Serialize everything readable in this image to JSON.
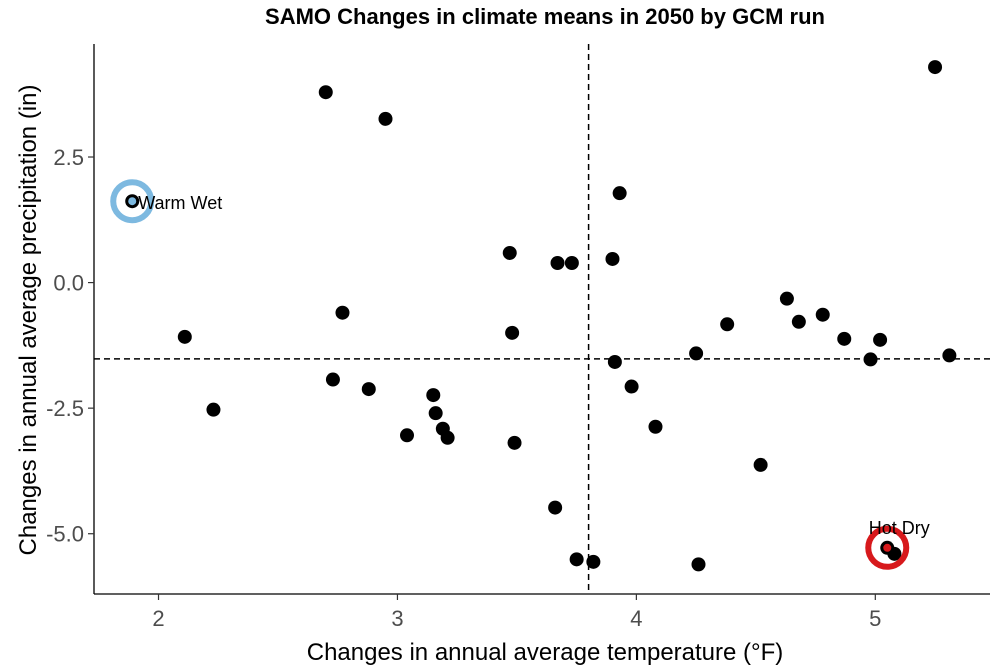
{
  "chart_data": {
    "type": "scatter",
    "title": "SAMO Changes in climate means in 2050 by GCM run",
    "xlabel": "Changes in annual average temperature (°F)",
    "ylabel": "Changes in annual average precipitation (in)",
    "xlim": [
      1.73,
      5.48
    ],
    "ylim": [
      -6.2,
      4.75
    ],
    "x_ticks": [
      2,
      3,
      4,
      5
    ],
    "x_tick_labels": [
      "2",
      "3",
      "4",
      "5"
    ],
    "y_ticks": [
      -5.0,
      -2.5,
      0.0,
      2.5
    ],
    "y_tick_labels": [
      "-5.0",
      "-2.5",
      "0.0",
      "2.5"
    ],
    "grid": false,
    "reference_lines": {
      "x": 3.8,
      "y": -1.52
    },
    "point_color": "#000000",
    "points": [
      {
        "x": 1.89,
        "y": 1.62
      },
      {
        "x": 2.11,
        "y": -1.08
      },
      {
        "x": 2.23,
        "y": -2.53
      },
      {
        "x": 2.7,
        "y": 3.79
      },
      {
        "x": 2.73,
        "y": -1.93
      },
      {
        "x": 2.77,
        "y": -0.6
      },
      {
        "x": 2.88,
        "y": -2.12
      },
      {
        "x": 2.95,
        "y": 3.26
      },
      {
        "x": 3.04,
        "y": -3.04
      },
      {
        "x": 3.15,
        "y": -2.24
      },
      {
        "x": 3.16,
        "y": -2.6
      },
      {
        "x": 3.19,
        "y": -2.91
      },
      {
        "x": 3.21,
        "y": -3.09
      },
      {
        "x": 3.47,
        "y": 0.59
      },
      {
        "x": 3.48,
        "y": -1.0
      },
      {
        "x": 3.49,
        "y": -3.19
      },
      {
        "x": 3.66,
        "y": -4.48
      },
      {
        "x": 3.67,
        "y": 0.39
      },
      {
        "x": 3.73,
        "y": 0.39
      },
      {
        "x": 3.75,
        "y": -5.51
      },
      {
        "x": 3.82,
        "y": -5.56
      },
      {
        "x": 3.9,
        "y": 0.47
      },
      {
        "x": 3.91,
        "y": -1.58
      },
      {
        "x": 3.93,
        "y": 1.78
      },
      {
        "x": 3.98,
        "y": -2.07
      },
      {
        "x": 4.08,
        "y": -2.87
      },
      {
        "x": 4.25,
        "y": -1.41
      },
      {
        "x": 4.26,
        "y": -5.61
      },
      {
        "x": 4.38,
        "y": -0.83
      },
      {
        "x": 4.52,
        "y": -3.63
      },
      {
        "x": 4.63,
        "y": -0.32
      },
      {
        "x": 4.68,
        "y": -0.78
      },
      {
        "x": 4.78,
        "y": -0.64
      },
      {
        "x": 4.87,
        "y": -1.12
      },
      {
        "x": 4.98,
        "y": -1.53
      },
      {
        "x": 5.02,
        "y": -1.14
      },
      {
        "x": 5.05,
        "y": -5.28
      },
      {
        "x": 5.08,
        "y": -5.4
      },
      {
        "x": 5.25,
        "y": 4.29
      },
      {
        "x": 5.31,
        "y": -1.45
      }
    ],
    "highlights": [
      {
        "label": "Warm Wet",
        "x": 1.89,
        "y": 1.62,
        "color": "#7DB9E0"
      },
      {
        "label": "Hot Dry",
        "x": 5.05,
        "y": -5.28,
        "color": "#D7191C"
      }
    ]
  }
}
